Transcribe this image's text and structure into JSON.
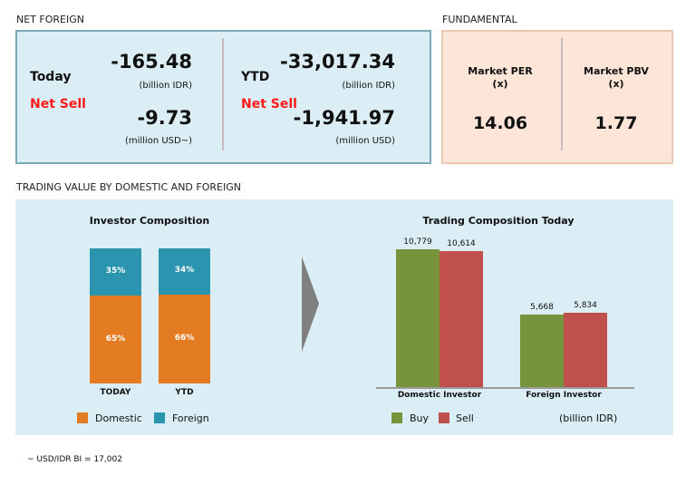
{
  "net_foreign": {
    "title": "NET FOREIGN",
    "today": {
      "label": "Today",
      "status": "Net Sell",
      "idr": "-165.48",
      "idr_unit": "(billion IDR)",
      "usd": "-9.73",
      "usd_unit": "(million USD~)"
    },
    "ytd": {
      "label": "YTD",
      "status": "Net Sell",
      "idr": "-33,017.34",
      "idr_unit": "(billion IDR)",
      "usd": "-1,941.97",
      "usd_unit": "(million USD)"
    }
  },
  "fundamental": {
    "title": "FUNDAMENTAL",
    "per": {
      "label": "Market PER",
      "unit": "(x)",
      "value": "14.06"
    },
    "pbv": {
      "label": "Market PBV",
      "unit": "(x)",
      "value": "1.77"
    }
  },
  "section_title": "TRADING VALUE BY DOMESTIC AND FOREIGN",
  "footnote": "~ USD/IDR BI = 17,002",
  "colors": {
    "domestic": "#e37b22",
    "foreign": "#2b94ae",
    "buy": "#77933c",
    "sell": "#c0504d"
  },
  "chart_data": [
    {
      "type": "bar",
      "stacked": true,
      "title": "Investor Composition",
      "categories": [
        "TODAY",
        "YTD"
      ],
      "series": [
        {
          "name": "Domestic",
          "values": [
            65,
            66
          ],
          "labels": [
            "65%",
            "66%"
          ]
        },
        {
          "name": "Foreign",
          "values": [
            35,
            34
          ],
          "labels": [
            "35%",
            "34%"
          ]
        }
      ],
      "ylim": [
        0,
        100
      ],
      "legend": "bottom"
    },
    {
      "type": "bar",
      "title": "Trading Composition Today",
      "categories": [
        "Domestic Investor",
        "Foreign Investor"
      ],
      "series": [
        {
          "name": "Buy",
          "values": [
            10779,
            5668
          ],
          "labels": [
            "10,779",
            "5,668"
          ]
        },
        {
          "name": "Sell",
          "values": [
            10614,
            5834
          ],
          "labels": [
            "10,614",
            "5,834"
          ]
        }
      ],
      "unit": "(billion IDR)",
      "legend": "bottom"
    }
  ]
}
